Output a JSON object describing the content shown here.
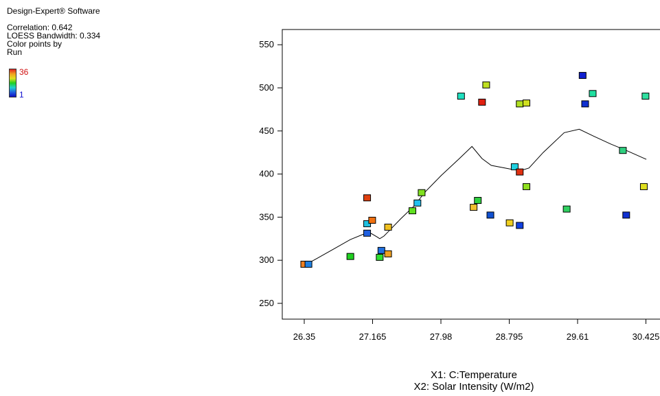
{
  "side": {
    "software": "Design-Expert® Software",
    "correlation": "Correlation: 0.642",
    "bandwidth": "LOESS Bandwidth: 0.334",
    "color_by_1": "Color points by",
    "color_by_2": "Run",
    "legend_high": "36",
    "legend_low": "1"
  },
  "chart_data": {
    "type": "scatter",
    "title": "",
    "xlabel_1": "X1: C:Temperature",
    "xlabel_2": "X2: Solar Intensity (W/m2)",
    "ylabel": "",
    "xlim": [
      26.1,
      30.5
    ],
    "ylim": [
      220,
      570
    ],
    "x_ticks": [
      26.35,
      27.165,
      27.98,
      28.795,
      29.61,
      30.425
    ],
    "x_tick_labels": [
      "26.35",
      "27.165",
      "27.98",
      "28.795",
      "29.61",
      "30.425"
    ],
    "y_ticks": [
      250,
      300,
      350,
      400,
      450,
      500,
      550
    ],
    "y_tick_labels": [
      "250",
      "300",
      "350",
      "400",
      "450",
      "500",
      "550"
    ],
    "points": [
      {
        "x": 26.35,
        "y": 295,
        "color": "#f08020"
      },
      {
        "x": 26.4,
        "y": 295,
        "color": "#2080e0"
      },
      {
        "x": 26.9,
        "y": 304,
        "color": "#20d020"
      },
      {
        "x": 27.1,
        "y": 342,
        "color": "#20c0e0"
      },
      {
        "x": 27.1,
        "y": 331,
        "color": "#2060e0"
      },
      {
        "x": 27.1,
        "y": 372,
        "color": "#e04010"
      },
      {
        "x": 27.16,
        "y": 346,
        "color": "#f07010"
      },
      {
        "x": 27.25,
        "y": 303,
        "color": "#30e030"
      },
      {
        "x": 27.27,
        "y": 311,
        "color": "#2070e0"
      },
      {
        "x": 27.35,
        "y": 338,
        "color": "#f0c020"
      },
      {
        "x": 27.35,
        "y": 307,
        "color": "#f0a020"
      },
      {
        "x": 27.64,
        "y": 357,
        "color": "#60e020"
      },
      {
        "x": 27.7,
        "y": 366,
        "color": "#20c0f0"
      },
      {
        "x": 27.75,
        "y": 378,
        "color": "#80e020"
      },
      {
        "x": 28.22,
        "y": 490,
        "color": "#20e0c0"
      },
      {
        "x": 28.37,
        "y": 361,
        "color": "#f0c030"
      },
      {
        "x": 28.42,
        "y": 369,
        "color": "#30d040"
      },
      {
        "x": 28.47,
        "y": 483,
        "color": "#e02010"
      },
      {
        "x": 28.52,
        "y": 503,
        "color": "#c0e020"
      },
      {
        "x": 28.57,
        "y": 352,
        "color": "#1050d0"
      },
      {
        "x": 28.8,
        "y": 343,
        "color": "#f0d020"
      },
      {
        "x": 28.86,
        "y": 408,
        "color": "#20d0e0"
      },
      {
        "x": 28.92,
        "y": 481,
        "color": "#b0e020"
      },
      {
        "x": 28.92,
        "y": 402,
        "color": "#e03010"
      },
      {
        "x": 28.92,
        "y": 340,
        "color": "#1040e0"
      },
      {
        "x": 29.0,
        "y": 482,
        "color": "#d0e020"
      },
      {
        "x": 29.0,
        "y": 385,
        "color": "#90e020"
      },
      {
        "x": 29.48,
        "y": 359,
        "color": "#30d060"
      },
      {
        "x": 29.67,
        "y": 514,
        "color": "#1020d0"
      },
      {
        "x": 29.7,
        "y": 481,
        "color": "#1030d0"
      },
      {
        "x": 29.79,
        "y": 493,
        "color": "#20e0a0"
      },
      {
        "x": 30.15,
        "y": 427,
        "color": "#30d080"
      },
      {
        "x": 30.19,
        "y": 352,
        "color": "#1030d0"
      },
      {
        "x": 30.4,
        "y": 385,
        "color": "#e0e020"
      },
      {
        "x": 30.42,
        "y": 490,
        "color": "#30e0a0"
      }
    ],
    "loess_line": [
      [
        26.35,
        294
      ],
      [
        26.5,
        302
      ],
      [
        26.7,
        313
      ],
      [
        26.9,
        324
      ],
      [
        27.05,
        330
      ],
      [
        27.15,
        331
      ],
      [
        27.22,
        327
      ],
      [
        27.25,
        325
      ],
      [
        27.3,
        328
      ],
      [
        27.35,
        333
      ],
      [
        27.5,
        348
      ],
      [
        27.65,
        362
      ],
      [
        27.8,
        380
      ],
      [
        27.98,
        398
      ],
      [
        28.2,
        418
      ],
      [
        28.35,
        432
      ],
      [
        28.47,
        418
      ],
      [
        28.58,
        410
      ],
      [
        28.8,
        406
      ],
      [
        28.93,
        404
      ],
      [
        29.03,
        407
      ],
      [
        29.2,
        425
      ],
      [
        29.45,
        448
      ],
      [
        29.63,
        452
      ],
      [
        29.8,
        444
      ],
      [
        30.0,
        435
      ],
      [
        30.2,
        427
      ],
      [
        30.43,
        417
      ]
    ]
  }
}
